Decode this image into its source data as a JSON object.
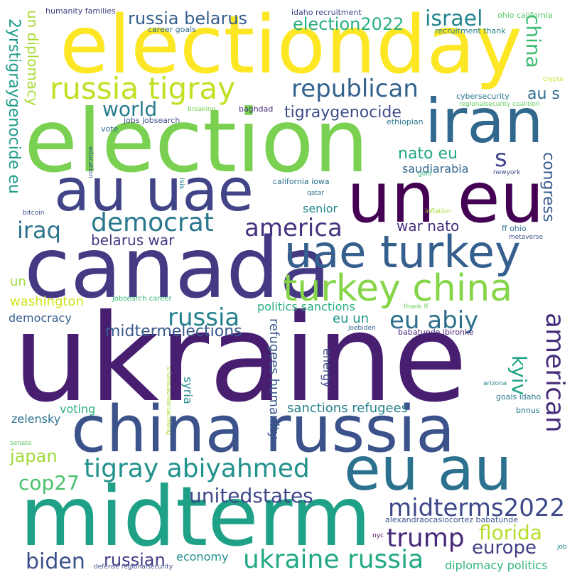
{
  "words": [
    {
      "text": "ukraine",
      "color": "#481f70"
    },
    {
      "text": "electionday",
      "color": "#fde725"
    },
    {
      "text": "election",
      "color": "#7ad151"
    },
    {
      "text": "canada",
      "color": "#443983"
    },
    {
      "text": "midterm",
      "color": "#1fa187"
    },
    {
      "text": "un eu",
      "color": "#440154"
    },
    {
      "text": "china russia",
      "color": "#3b528b"
    },
    {
      "text": "au uae",
      "color": "#414487"
    },
    {
      "text": "iran",
      "color": "#31688e"
    },
    {
      "text": "eu au",
      "color": "#2c728e"
    },
    {
      "text": "uae turkey",
      "color": "#355f8d"
    },
    {
      "text": "turkey china",
      "color": "#86d549"
    },
    {
      "text": "russia tigray",
      "color": "#c2df23"
    },
    {
      "text": "tigray abiyahmed",
      "color": "#21918c"
    },
    {
      "text": "midterms2022",
      "color": "#3e4989"
    },
    {
      "text": "ukraine russia",
      "color": "#22a884"
    },
    {
      "text": "republican",
      "color": "#33638d"
    },
    {
      "text": "american",
      "color": "#472d7b"
    },
    {
      "text": "democrat",
      "color": "#2a788e"
    },
    {
      "text": "america",
      "color": "#46327e"
    },
    {
      "text": "trump",
      "color": "#482878"
    },
    {
      "text": "eu abiy",
      "color": "#2d708e"
    },
    {
      "text": "russia",
      "color": "#26828e"
    },
    {
      "text": "unitedstates",
      "color": "#3f4788"
    },
    {
      "text": "israel",
      "color": "#25858e"
    },
    {
      "text": "iraq",
      "color": "#2c738e"
    },
    {
      "text": "europe",
      "color": "#424086"
    },
    {
      "text": "florida",
      "color": "#b5de2b"
    },
    {
      "text": "biden",
      "color": "#3b518b"
    },
    {
      "text": "cop27",
      "color": "#4ac16d"
    },
    {
      "text": "world",
      "color": "#287d8e"
    },
    {
      "text": "russia belarus",
      "color": "#355e8d"
    },
    {
      "text": "election2022",
      "color": "#2ab07f"
    },
    {
      "text": "tigraygenocide",
      "color": "#3d4d8a"
    },
    {
      "text": "china",
      "color": "#3dbc74"
    },
    {
      "text": "kyiv",
      "color": "#20a386"
    },
    {
      "text": "russian",
      "color": "#443b84"
    },
    {
      "text": "japan",
      "color": "#a0da39"
    },
    {
      "text": "2yrstigraygenocide eu",
      "color": "#1e9b8a"
    },
    {
      "text": "un diplomacy",
      "color": "#a8db34"
    },
    {
      "text": "midtermelections",
      "color": "#38598c"
    },
    {
      "text": "belarus war",
      "color": "#453781"
    },
    {
      "text": "war nato",
      "color": "#46307e"
    },
    {
      "text": "nato eu",
      "color": "#21a685"
    },
    {
      "text": "s",
      "color": "#404688"
    },
    {
      "text": "au s",
      "color": "#2e6e8e"
    },
    {
      "text": "congress",
      "color": "#365c8d"
    },
    {
      "text": "washington",
      "color": "#d2e21b"
    },
    {
      "text": "un",
      "color": "#9dd93b"
    },
    {
      "text": "sanctions refugees",
      "color": "#27808e"
    },
    {
      "text": "refugees humanity",
      "color": "#38588c"
    },
    {
      "text": "eu un",
      "color": "#1f958b"
    },
    {
      "text": "saudiarabia",
      "color": "#31678e"
    },
    {
      "text": "senior",
      "color": "#23888e"
    },
    {
      "text": "politics sanctions",
      "color": "#29af7f"
    },
    {
      "text": "economy",
      "color": "#21918c"
    },
    {
      "text": "voting",
      "color": "#2eb37c"
    },
    {
      "text": "zelensky",
      "color": "#2d718e"
    },
    {
      "text": "diplomacy politics",
      "color": "#30b57a"
    },
    {
      "text": "democracy",
      "color": "#355f8d"
    },
    {
      "text": "energy",
      "color": "#3d4e8a"
    },
    {
      "text": "syria",
      "color": "#238a8d"
    },
    {
      "text": "humanity families",
      "color": "#414287"
    },
    {
      "text": "idaho recruitment",
      "color": "#3f4889"
    },
    {
      "text": "career goals",
      "color": "#2f6b8e"
    },
    {
      "text": "recruitment thank",
      "color": "#277f8e"
    },
    {
      "text": "ohio california",
      "color": "#56c667"
    },
    {
      "text": "crypto",
      "color": "#cae11f"
    },
    {
      "text": "cybersecurity",
      "color": "#2a768e"
    },
    {
      "text": "regionalsecurity coalition",
      "color": "#65cb5e"
    },
    {
      "text": "breaking",
      "color": "#7ad151"
    },
    {
      "text": "baghdad",
      "color": "#472c7a"
    },
    {
      "text": "jobs jobsearch",
      "color": "#3c4f8a"
    },
    {
      "text": "ethiopian",
      "color": "#2a778e"
    },
    {
      "text": "vote",
      "color": "#31678e"
    },
    {
      "text": "education",
      "color": "#3b528b"
    },
    {
      "text": "isis",
      "color": "#25838e"
    },
    {
      "text": "california iowa",
      "color": "#2c728e"
    },
    {
      "text": "gold",
      "color": "#32b67a"
    },
    {
      "text": "newyork",
      "color": "#3e4a89"
    },
    {
      "text": "bitcoin",
      "color": "#3b528b"
    },
    {
      "text": "qatar",
      "color": "#2c718e"
    },
    {
      "text": "inflation",
      "color": "#a5db36"
    },
    {
      "text": "ff ohio",
      "color": "#2e6d8e"
    },
    {
      "text": "metaverse",
      "color": "#3a548c"
    },
    {
      "text": "jobsearch career",
      "color": "#37b878"
    },
    {
      "text": "thank ff",
      "color": "#6ccd5a"
    },
    {
      "text": "joebiden",
      "color": "#34618d"
    },
    {
      "text": "babatunde ibironke",
      "color": "#482878"
    },
    {
      "text": "s iamsaureenachieng",
      "color": "#a5db36"
    },
    {
      "text": "arizona",
      "color": "#24868e"
    },
    {
      "text": "goals idaho",
      "color": "#2a788e"
    },
    {
      "text": "bnnus",
      "color": "#287c8e"
    },
    {
      "text": "senate",
      "color": "#5ec962"
    },
    {
      "text": "alexandraocasiocortez babatunde",
      "color": "#3a548c"
    },
    {
      "text": "nyc",
      "color": "#450559"
    },
    {
      "text": "job",
      "color": "#23898e"
    },
    {
      "text": "defense regionalsecurity",
      "color": "#3f4889"
    }
  ]
}
